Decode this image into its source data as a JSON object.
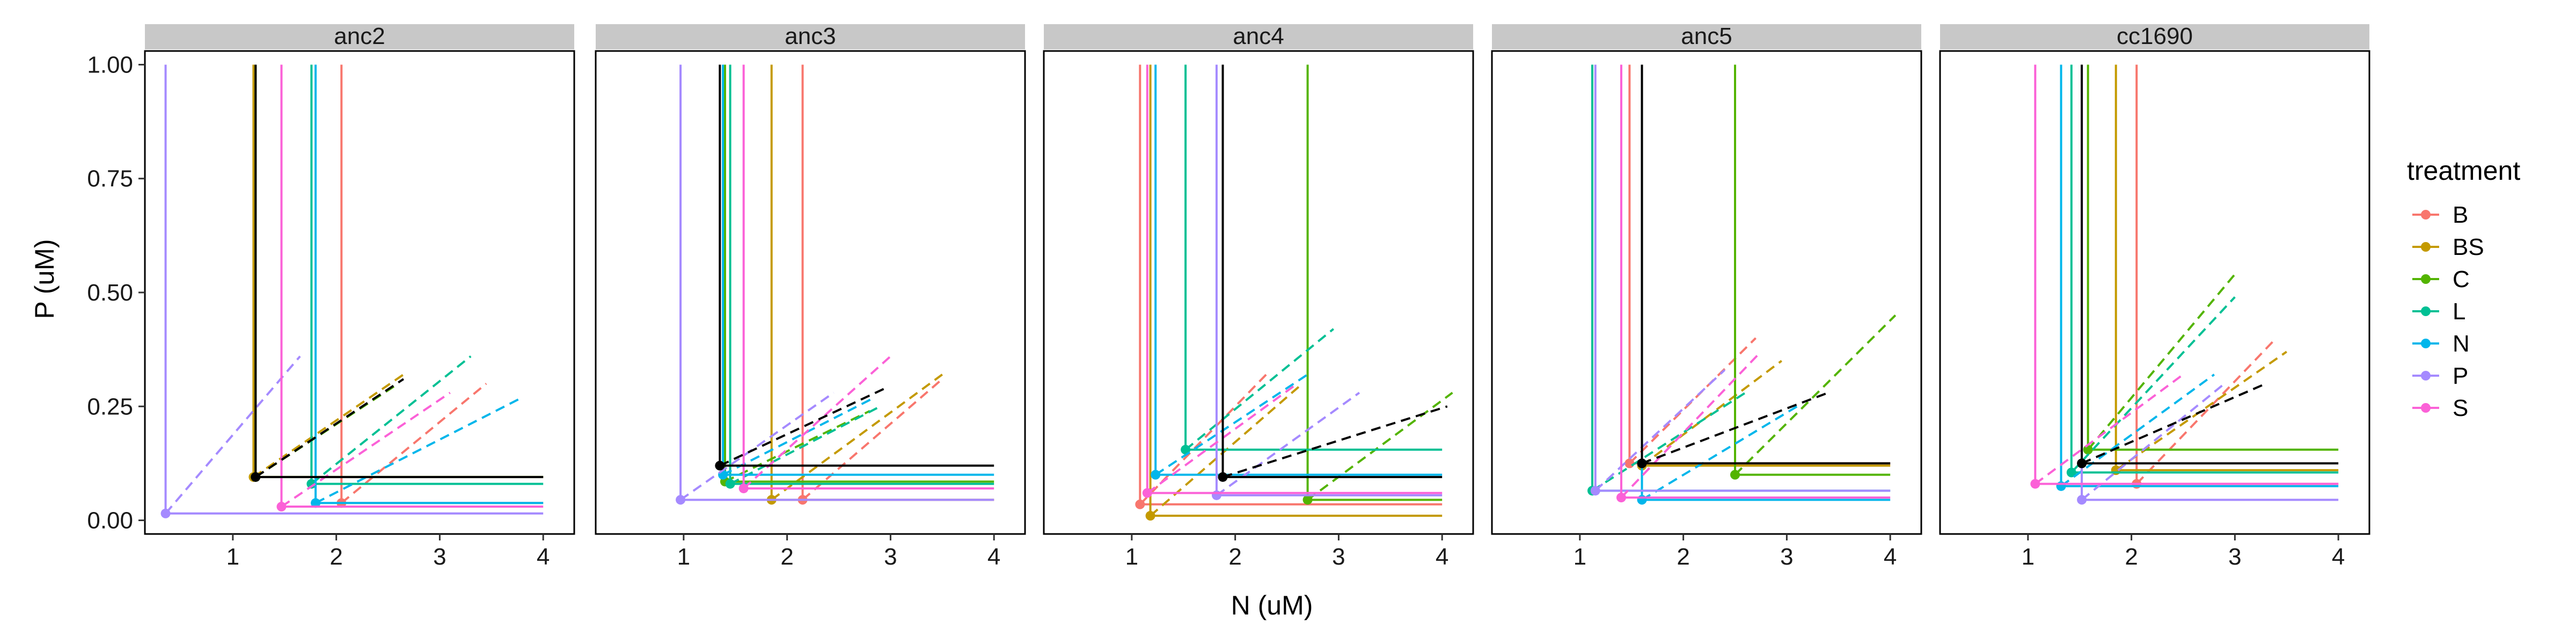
{
  "chart_data": {
    "type": "line",
    "facets": [
      "anc2",
      "anc3",
      "anc4",
      "anc5",
      "cc1690"
    ],
    "xlabel": "N (uM)",
    "ylabel": "P (uM)",
    "xlim": [
      0.15,
      4.3
    ],
    "ylim": [
      -0.03,
      1.03
    ],
    "x_ticks": [
      1,
      2,
      3,
      4
    ],
    "y_ticks": [
      0.0,
      0.25,
      0.5,
      0.75,
      1.0
    ],
    "y_tick_labels": [
      "0.00",
      "0.25",
      "0.50",
      "0.75",
      "1.00"
    ],
    "legend": {
      "title": "treatment",
      "placement": "right",
      "entries": [
        {
          "label": "B",
          "color": "#F8766D"
        },
        {
          "label": "BS",
          "color": "#C49A00"
        },
        {
          "label": "C",
          "color": "#53B400"
        },
        {
          "label": "L",
          "color": "#00C094"
        },
        {
          "label": "N",
          "color": "#00B6EB"
        },
        {
          "label": "P",
          "color": "#A58AFF"
        },
        {
          "label": "S",
          "color": "#FB61D7"
        }
      ]
    },
    "colors": {
      "B": "#F8766D",
      "BS": "#C49A00",
      "C": "#53B400",
      "L": "#00C094",
      "N": "#00B6EB",
      "P": "#A58AFF",
      "S": "#FB61D7",
      "ancestor": "#000000"
    },
    "panels": [
      {
        "facet": "anc2",
        "ancestor": {
          "n": 1.22,
          "p": 0.095,
          "slope_end": [
            2.65,
            0.31
          ]
        },
        "curves": [
          {
            "treatment": "B",
            "n": 2.05,
            "p": 0.038,
            "slope_end": [
              3.45,
              0.3
            ]
          },
          {
            "treatment": "BS",
            "n": 1.2,
            "p": 0.095,
            "slope_end": [
              2.65,
              0.32
            ]
          },
          {
            "treatment": "C",
            "n": 1.22,
            "p": 0.095,
            "slope_end": [
              2.6,
              0.3
            ]
          },
          {
            "treatment": "L",
            "n": 1.76,
            "p": 0.08,
            "slope_end": [
              3.3,
              0.36
            ]
          },
          {
            "treatment": "N",
            "n": 1.8,
            "p": 0.038,
            "slope_end": [
              3.8,
              0.27
            ]
          },
          {
            "treatment": "P",
            "n": 0.35,
            "p": 0.015,
            "slope_end": [
              1.65,
              0.36
            ]
          },
          {
            "treatment": "S",
            "n": 1.47,
            "p": 0.03,
            "slope_end": [
              3.1,
              0.28
            ]
          }
        ]
      },
      {
        "facet": "anc3",
        "ancestor": {
          "n": 1.35,
          "p": 0.12,
          "slope_end": [
            2.95,
            0.29
          ]
        },
        "curves": [
          {
            "treatment": "B",
            "n": 2.15,
            "p": 0.045,
            "slope_end": [
              3.5,
              0.31
            ]
          },
          {
            "treatment": "BS",
            "n": 1.85,
            "p": 0.045,
            "slope_end": [
              3.5,
              0.32
            ]
          },
          {
            "treatment": "C",
            "n": 1.4,
            "p": 0.085,
            "slope_end": [
              2.8,
              0.24
            ]
          },
          {
            "treatment": "L",
            "n": 1.45,
            "p": 0.08,
            "slope_end": [
              2.9,
              0.25
            ]
          },
          {
            "treatment": "N",
            "n": 1.38,
            "p": 0.1,
            "slope_end": [
              2.85,
              0.27
            ]
          },
          {
            "treatment": "P",
            "n": 0.97,
            "p": 0.045,
            "slope_end": [
              2.45,
              0.28
            ]
          },
          {
            "treatment": "S",
            "n": 1.58,
            "p": 0.07,
            "slope_end": [
              3.0,
              0.36
            ]
          }
        ]
      },
      {
        "facet": "anc4",
        "ancestor": {
          "n": 1.88,
          "p": 0.095,
          "slope_end": [
            4.05,
            0.25
          ]
        },
        "curves": [
          {
            "treatment": "B",
            "n": 1.08,
            "p": 0.035,
            "slope_end": [
              2.3,
              0.32
            ]
          },
          {
            "treatment": "BS",
            "n": 1.18,
            "p": 0.01,
            "slope_end": [
              2.65,
              0.3
            ]
          },
          {
            "treatment": "C",
            "n": 2.7,
            "p": 0.045,
            "slope_end": [
              4.1,
              0.28
            ]
          },
          {
            "treatment": "L",
            "n": 1.52,
            "p": 0.155,
            "slope_end": [
              2.95,
              0.42
            ]
          },
          {
            "treatment": "N",
            "n": 1.23,
            "p": 0.1,
            "slope_end": [
              2.7,
              0.32
            ]
          },
          {
            "treatment": "P",
            "n": 1.82,
            "p": 0.055,
            "slope_end": [
              3.2,
              0.28
            ]
          },
          {
            "treatment": "S",
            "n": 1.15,
            "p": 0.06,
            "slope_end": [
              2.6,
              0.3
            ]
          }
        ]
      },
      {
        "facet": "anc5",
        "ancestor": {
          "n": 1.6,
          "p": 0.125,
          "slope_end": [
            3.4,
            0.28
          ]
        },
        "curves": [
          {
            "treatment": "B",
            "n": 1.48,
            "p": 0.125,
            "slope_end": [
              2.7,
              0.4
            ]
          },
          {
            "treatment": "BS",
            "n": 1.6,
            "p": 0.12,
            "slope_end": [
              2.95,
              0.35
            ]
          },
          {
            "treatment": "C",
            "n": 2.5,
            "p": 0.1,
            "slope_end": [
              4.05,
              0.45
            ]
          },
          {
            "treatment": "L",
            "n": 1.12,
            "p": 0.065,
            "slope_end": [
              2.6,
              0.28
            ]
          },
          {
            "treatment": "N",
            "n": 1.6,
            "p": 0.045,
            "slope_end": [
              3.1,
              0.25
            ]
          },
          {
            "treatment": "P",
            "n": 1.15,
            "p": 0.065,
            "slope_end": [
              2.4,
              0.33
            ]
          },
          {
            "treatment": "S",
            "n": 1.4,
            "p": 0.05,
            "slope_end": [
              2.75,
              0.37
            ]
          }
        ]
      },
      {
        "facet": "cc1690",
        "ancestor": {
          "n": 1.52,
          "p": 0.125,
          "slope_end": [
            3.3,
            0.3
          ]
        },
        "curves": [
          {
            "treatment": "B",
            "n": 2.05,
            "p": 0.08,
            "slope_end": [
              3.4,
              0.4
            ]
          },
          {
            "treatment": "BS",
            "n": 1.85,
            "p": 0.11,
            "slope_end": [
              3.5,
              0.37
            ]
          },
          {
            "treatment": "C",
            "n": 1.58,
            "p": 0.155,
            "slope_end": [
              3.0,
              0.54
            ]
          },
          {
            "treatment": "L",
            "n": 1.42,
            "p": 0.105,
            "slope_end": [
              3.0,
              0.49
            ]
          },
          {
            "treatment": "N",
            "n": 1.32,
            "p": 0.075,
            "slope_end": [
              2.8,
              0.32
            ]
          },
          {
            "treatment": "P",
            "n": 1.52,
            "p": 0.045,
            "slope_end": [
              2.9,
              0.3
            ]
          },
          {
            "treatment": "S",
            "n": 1.07,
            "p": 0.08,
            "slope_end": [
              2.5,
              0.32
            ]
          }
        ]
      }
    ]
  }
}
